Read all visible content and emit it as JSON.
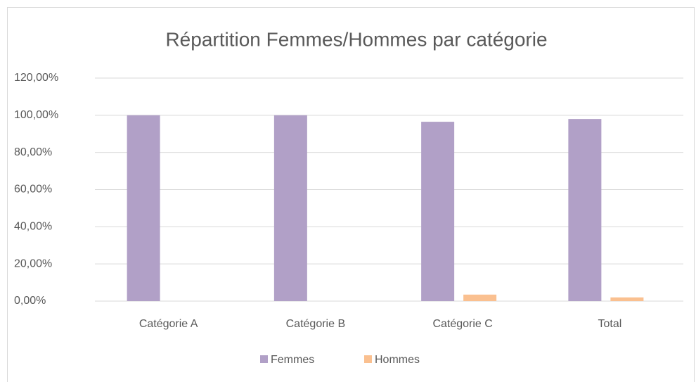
{
  "chart_data": {
    "type": "bar",
    "title": "Répartition Femmes/Hommes par catégorie",
    "categories": [
      "Catégorie A",
      "Catégorie B",
      "Catégorie C",
      "Total"
    ],
    "series": [
      {
        "name": "Femmes",
        "color": "#b1a0c7",
        "values": [
          100,
          100,
          96.5,
          98
        ]
      },
      {
        "name": "Hommes",
        "color": "#fac090",
        "values": [
          0,
          0,
          3.5,
          2
        ]
      }
    ],
    "ylim": [
      0,
      120
    ],
    "yticks": [
      {
        "value": 0,
        "label": "0,00%"
      },
      {
        "value": 20,
        "label": "20,00%"
      },
      {
        "value": 40,
        "label": "40,00%"
      },
      {
        "value": 60,
        "label": "60,00%"
      },
      {
        "value": 80,
        "label": "80,00%"
      },
      {
        "value": 100,
        "label": "100,00%"
      },
      {
        "value": 120,
        "label": "120,00%"
      }
    ],
    "grid": true,
    "legend": "bottom"
  }
}
